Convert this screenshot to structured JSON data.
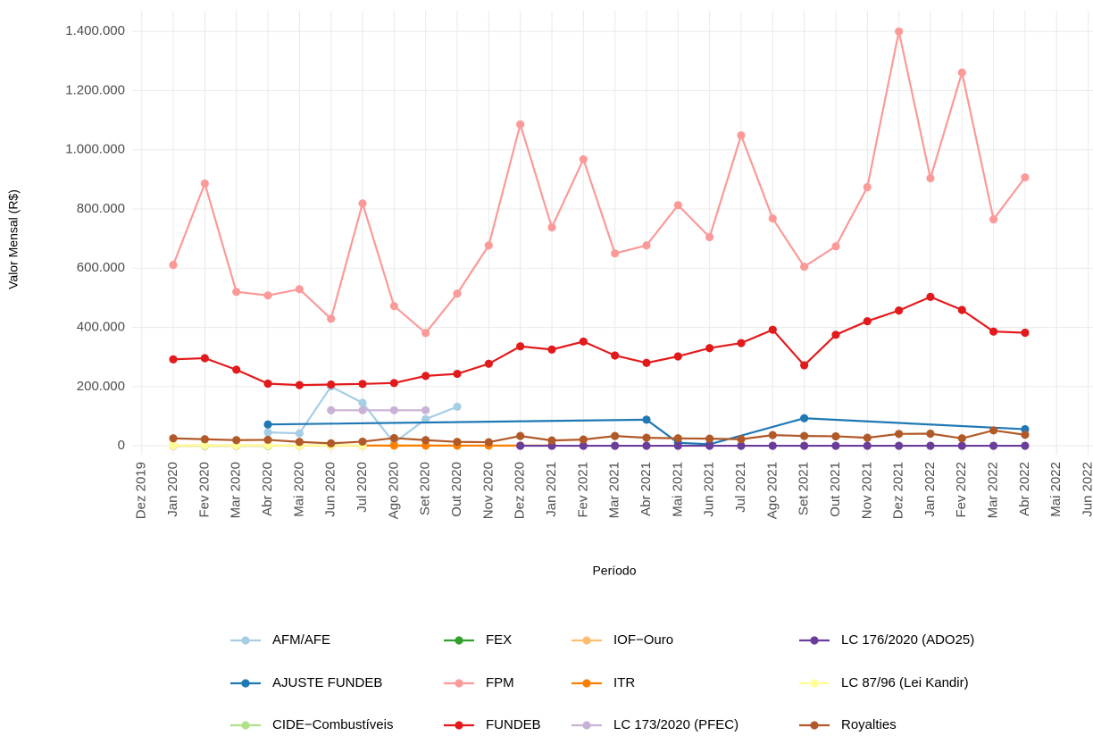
{
  "chart_data": {
    "type": "line",
    "x_label": "Período",
    "y_label": "Valor Mensal (R$)",
    "categories": [
      "Dez 2019",
      "Jan 2020",
      "Fev 2020",
      "Mar 2020",
      "Abr 2020",
      "Mai 2020",
      "Jun 2020",
      "Jul 2020",
      "Ago 2020",
      "Set 2020",
      "Out 2020",
      "Nov 2020",
      "Dez 2020",
      "Jan 2021",
      "Fev 2021",
      "Mar 2021",
      "Abr 2021",
      "Mai 2021",
      "Jun 2021",
      "Jul 2021",
      "Ago 2021",
      "Set 2021",
      "Out 2021",
      "Nov 2021",
      "Dez 2021",
      "Jan 2022",
      "Fev 2022",
      "Mar 2022",
      "Abr 2022",
      "Mai 2022",
      "Jun 2022"
    ],
    "ylim": [
      -30000,
      1470000
    ],
    "yticks": [
      0,
      {
        "value": 200000,
        "label": "200.000"
      },
      {
        "value": 400000,
        "label": "400.000"
      },
      {
        "value": 600000,
        "label": "600.000"
      },
      {
        "value": 800000,
        "label": "800.000"
      },
      {
        "value": 1000000,
        "label": "1.000.000"
      },
      {
        "value": 1200000,
        "label": "1.200.000"
      },
      {
        "value": 1400000,
        "label": "1.400.000"
      }
    ],
    "grid": true,
    "legend": "bottom",
    "series": [
      {
        "name": "AFM/AFE",
        "color": "#a6cee3",
        "x": [
          "Abr 2020",
          "Mai 2020",
          "Jun 2020",
          "Jul 2020",
          "Ago 2020",
          "Set 2020",
          "Out 2020"
        ],
        "values": [
          45000,
          42000,
          200000,
          145000,
          10000,
          90000,
          132000
        ]
      },
      {
        "name": "AJUSTE FUNDEB",
        "color": "#1f78b4",
        "x": [
          "Abr 2020",
          "Abr 2021",
          "Mai 2021",
          "Jun 2021",
          "Set 2021",
          "Abr 2022"
        ],
        "values": [
          72000,
          88000,
          10000,
          5000,
          93000,
          56000
        ]
      },
      {
        "name": "CIDE−Combustíveis",
        "color": "#b2df8a",
        "x": [
          "Jan 2020",
          "Abr 2020",
          "Jul 2020",
          "Out 2020"
        ],
        "values": [
          500,
          500,
          500,
          500
        ]
      },
      {
        "name": "FEX",
        "color": "#33a02c",
        "x": [
          "Jan 2020",
          "Fev 2020",
          "Mar 2020",
          "Abr 2020"
        ],
        "values": [
          0,
          0,
          0,
          0
        ]
      },
      {
        "name": "FPM",
        "color": "#fb9a99",
        "x": [
          "Jan 2020",
          "Fev 2020",
          "Mar 2020",
          "Abr 2020",
          "Mai 2020",
          "Jun 2020",
          "Jul 2020",
          "Ago 2020",
          "Set 2020",
          "Out 2020",
          "Nov 2020",
          "Dez 2020",
          "Jan 2021",
          "Fev 2021",
          "Mar 2021",
          "Abr 2021",
          "Mai 2021",
          "Jun 2021",
          "Jul 2021",
          "Ago 2021",
          "Set 2021",
          "Out 2021",
          "Nov 2021",
          "Dez 2021",
          "Jan 2022",
          "Fev 2022",
          "Mar 2022",
          "Abr 2022"
        ],
        "values": [
          611000,
          886000,
          520000,
          508000,
          529000,
          429000,
          819000,
          472000,
          381000,
          514000,
          677000,
          1086000,
          738000,
          968000,
          650000,
          677000,
          813000,
          705000,
          1049000,
          768000,
          605000,
          674000,
          874000,
          1400000,
          904000,
          1261000,
          765000,
          907000
        ]
      },
      {
        "name": "FUNDEB",
        "color": "#e31a1c",
        "x": [
          "Jan 2020",
          "Fev 2020",
          "Mar 2020",
          "Abr 2020",
          "Mai 2020",
          "Jun 2020",
          "Jul 2020",
          "Ago 2020",
          "Set 2020",
          "Out 2020",
          "Nov 2020",
          "Dez 2020",
          "Jan 2021",
          "Fev 2021",
          "Mar 2021",
          "Abr 2021",
          "Mai 2021",
          "Jun 2021",
          "Jul 2021",
          "Ago 2021",
          "Set 2021",
          "Out 2021",
          "Nov 2021",
          "Dez 2021",
          "Jan 2022",
          "Fev 2022",
          "Mar 2022",
          "Abr 2022"
        ],
        "values": [
          292000,
          296000,
          257000,
          210000,
          205000,
          207000,
          209000,
          212000,
          236000,
          243000,
          277000,
          336000,
          325000,
          352000,
          305000,
          280000,
          302000,
          330000,
          347000,
          392000,
          272000,
          375000,
          421000,
          457000,
          503000,
          459000,
          386000,
          382000
        ]
      },
      {
        "name": "IOF−Ouro",
        "color": "#fdbf6f",
        "x": [
          "Jan 2020",
          "Mar 2020",
          "Mai 2020",
          "Jul 2020"
        ],
        "values": [
          100,
          100,
          100,
          100
        ]
      },
      {
        "name": "ITR",
        "color": "#ff7f00",
        "x": [
          "Jan 2020",
          "Fev 2020",
          "Mar 2020",
          "Abr 2020",
          "Mai 2020",
          "Jun 2020",
          "Jul 2020",
          "Ago 2020",
          "Set 2020",
          "Out 2020",
          "Nov 2020",
          "Dez 2020",
          "Jan 2021"
        ],
        "values": [
          500,
          500,
          500,
          500,
          500,
          500,
          500,
          500,
          500,
          500,
          500,
          500,
          500
        ]
      },
      {
        "name": "LC 173/2020 (PFEC)",
        "color": "#cab2d6",
        "x": [
          "Jun 2020",
          "Jul 2020",
          "Ago 2020",
          "Set 2020"
        ],
        "values": [
          120000,
          120000,
          120000,
          120000
        ]
      },
      {
        "name": "LC 176/2020 (ADO25)",
        "color": "#6a3d9a",
        "x": [
          "Dez 2020",
          "Jan 2021",
          "Fev 2021",
          "Mar 2021",
          "Abr 2021",
          "Mai 2021",
          "Jun 2021",
          "Jul 2021",
          "Ago 2021",
          "Set 2021",
          "Out 2021",
          "Nov 2021",
          "Dez 2021",
          "Jan 2022",
          "Fev 2022",
          "Mar 2022",
          "Abr 2022"
        ],
        "values": [
          0,
          0,
          0,
          0,
          0,
          0,
          0,
          0,
          0,
          0,
          0,
          0,
          0,
          0,
          0,
          0,
          0
        ]
      },
      {
        "name": "LC 87/96 (Lei Kandir)",
        "color": "#ffff99",
        "x": [
          "Jan 2020",
          "Fev 2020",
          "Mar 2020",
          "Abr 2020",
          "Mai 2020",
          "Jun 2020",
          "Jul 2020"
        ],
        "values": [
          1000,
          1000,
          1000,
          1000,
          1000,
          1000,
          1000
        ]
      },
      {
        "name": "Royalties",
        "color": "#b15928",
        "x": [
          "Jan 2020",
          "Fev 2020",
          "Mar 2020",
          "Abr 2020",
          "Mai 2020",
          "Jun 2020",
          "Jul 2020",
          "Ago 2020",
          "Set 2020",
          "Out 2020",
          "Nov 2020",
          "Dez 2020",
          "Jan 2021",
          "Fev 2021",
          "Mar 2021",
          "Abr 2021",
          "Mai 2021",
          "Jun 2021",
          "Jul 2021",
          "Ago 2021",
          "Set 2021",
          "Out 2021",
          "Nov 2021",
          "Dez 2021",
          "Jan 2022",
          "Fev 2022",
          "Mar 2022",
          "Abr 2022"
        ],
        "values": [
          25000,
          22000,
          19000,
          20000,
          13000,
          8000,
          14000,
          26000,
          19000,
          13000,
          12000,
          33000,
          18000,
          21000,
          33000,
          27000,
          25000,
          24000,
          22000,
          36000,
          33000,
          32000,
          27000,
          40000,
          41000,
          25000,
          52000,
          37000
        ]
      }
    ]
  }
}
